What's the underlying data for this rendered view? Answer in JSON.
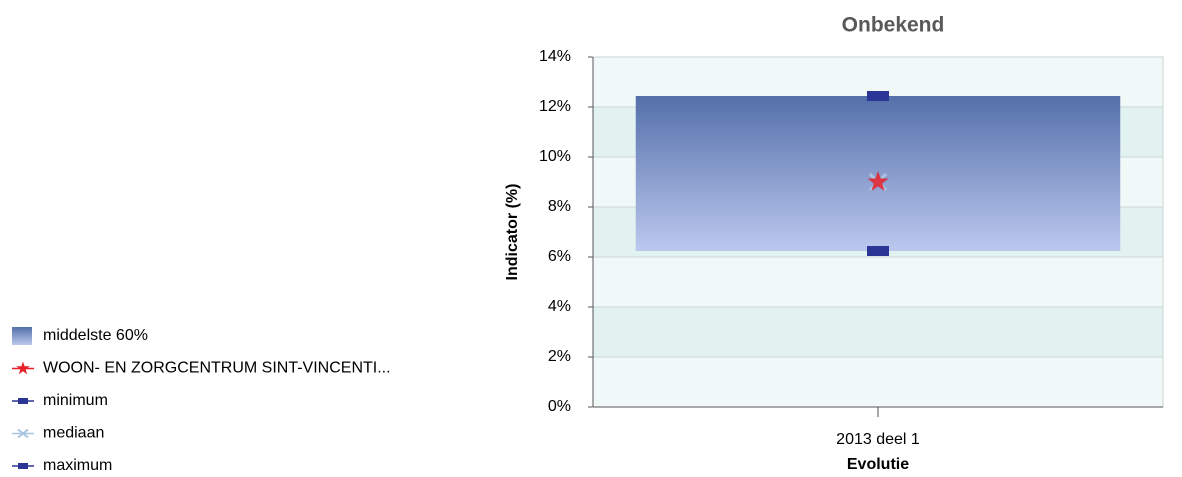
{
  "chart_data": {
    "type": "range",
    "title": "Onbekend",
    "y_label": "Indicator (%)",
    "x_label": "Evolutie",
    "categories": [
      "2013 deel 1"
    ],
    "ylim": [
      0,
      14
    ],
    "yticks": [
      {
        "value": 0,
        "label": "0%"
      },
      {
        "value": 2,
        "label": "2%"
      },
      {
        "value": 4,
        "label": "4%"
      },
      {
        "value": 6,
        "label": "6%"
      },
      {
        "value": 8,
        "label": "8%"
      },
      {
        "value": 10,
        "label": "10%"
      },
      {
        "value": 12,
        "label": "12%"
      },
      {
        "value": 14,
        "label": "14%"
      }
    ],
    "grid": true,
    "legend": "bottom-left",
    "series": [
      {
        "name": "middelste 60%",
        "color": "#6f86be",
        "low": [
          6.24
        ],
        "high": [
          12.44
        ]
      },
      {
        "name": "WOON- EN ZORGCENTRUM SINT-VINCENTI...",
        "color": "#e8202a",
        "values": [
          9.0
        ]
      },
      {
        "name": "minimum",
        "color": "#2b3596",
        "values": [
          6.24
        ]
      },
      {
        "name": "mediaan",
        "color": "#a9c4e0",
        "values": [
          9.0
        ]
      },
      {
        "name": "maximum",
        "color": "#2b3596",
        "values": [
          12.44
        ]
      }
    ]
  }
}
